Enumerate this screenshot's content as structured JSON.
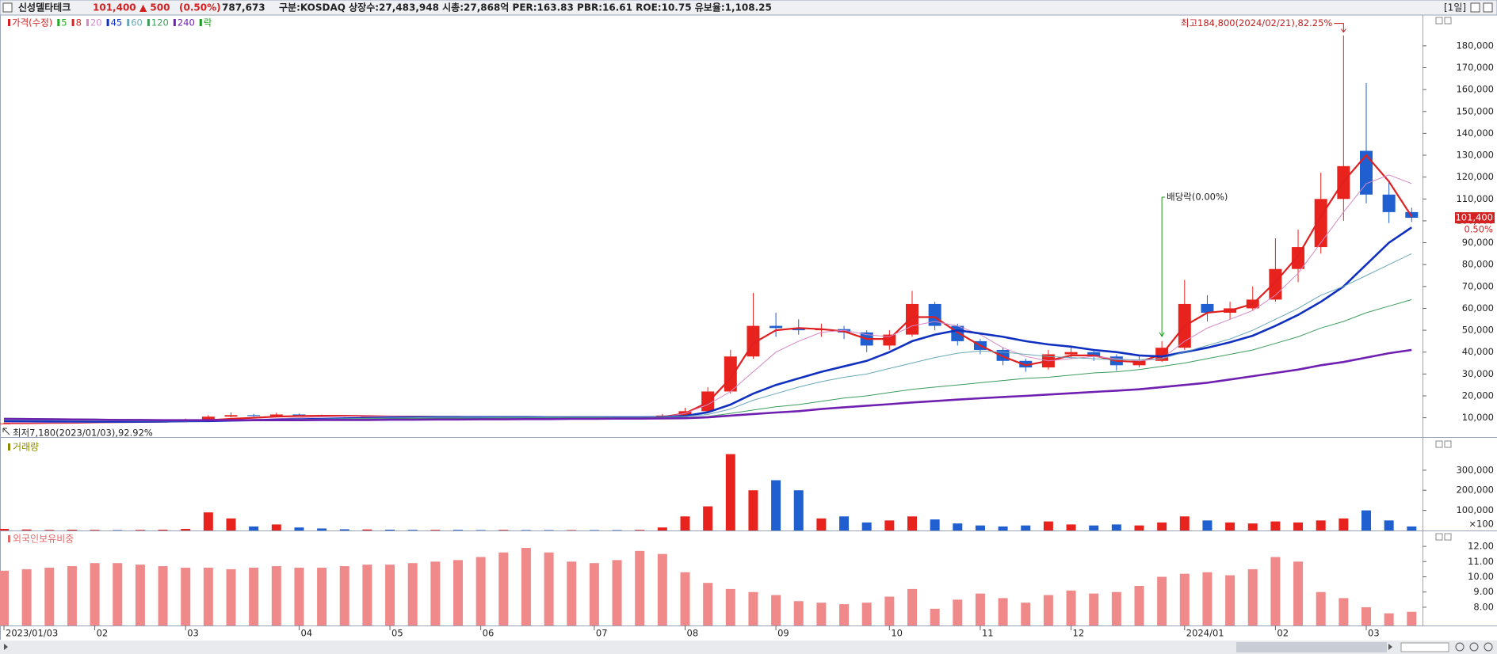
{
  "header": {
    "name": "신성델타테크",
    "price": "101,400",
    "change": "▲ 500",
    "change_pct": "(0.50%)",
    "volume": "787,673",
    "info": "구분:KOSDAQ 상장수:27,483,948 시총:27,868억 PER:163.83 PBR:16.61 ROE:10.75 유보율:1,108.25",
    "period": "[1일]"
  },
  "chart_data": [
    {
      "type": "candlestick",
      "price_label": "가격(수정)",
      "price_color": "#d42020",
      "lock_label": "락",
      "lock_color": "#1a9a1a",
      "up_color": "#e8231d",
      "down_color": "#1f5fd0",
      "categories": [
        "2023/01/03",
        null,
        null,
        null,
        "02",
        null,
        null,
        null,
        "03",
        null,
        null,
        null,
        null,
        "04",
        null,
        null,
        null,
        "05",
        null,
        null,
        null,
        "06",
        null,
        null,
        null,
        null,
        "07",
        null,
        null,
        null,
        "08",
        null,
        null,
        null,
        "09",
        null,
        null,
        null,
        null,
        "10",
        null,
        null,
        null,
        "11",
        null,
        null,
        null,
        "12",
        null,
        null,
        null,
        null,
        "2024/01",
        null,
        null,
        null,
        "02",
        null,
        null,
        null,
        "03",
        null,
        null
      ],
      "open": [
        7300,
        7400,
        7600,
        7800,
        8000,
        8200,
        8100,
        8300,
        8500,
        9000,
        10500,
        11200,
        10800,
        11500,
        11000,
        10800,
        10500,
        10600,
        10400,
        10300,
        10500,
        10400,
        10200,
        10300,
        10100,
        10000,
        10200,
        10100,
        10000,
        10200,
        11000,
        13000,
        22000,
        38000,
        52000,
        51000,
        50000,
        50500,
        49000,
        43000,
        48000,
        62000,
        52000,
        45000,
        41000,
        36000,
        33000,
        39000,
        40000,
        38000,
        34000,
        36000,
        42000,
        62000,
        58000,
        60000,
        64000,
        78000,
        88000,
        110000,
        132000,
        112000,
        104000
      ],
      "high": [
        7800,
        7900,
        8100,
        8300,
        8600,
        8400,
        8500,
        8900,
        9600,
        11200,
        12400,
        11800,
        12300,
        11900,
        11400,
        11100,
        11000,
        10900,
        10700,
        10800,
        10700,
        10600,
        10600,
        10500,
        10300,
        10500,
        10400,
        10300,
        10600,
        11800,
        14500,
        24000,
        41000,
        67000,
        58000,
        55000,
        53000,
        52000,
        50000,
        50000,
        68000,
        63000,
        53000,
        46000,
        42000,
        37000,
        41000,
        43000,
        41000,
        39000,
        38000,
        45000,
        73000,
        66000,
        63000,
        70000,
        92000,
        96000,
        122000,
        184800,
        163000,
        118000,
        106000
      ],
      "low": [
        7180,
        7300,
        7500,
        7700,
        7900,
        7900,
        8000,
        8200,
        8400,
        8900,
        10200,
        10500,
        10600,
        10800,
        10500,
        10300,
        10300,
        10200,
        10100,
        10200,
        10200,
        10000,
        10100,
        9900,
        9800,
        9900,
        9900,
        9800,
        9900,
        10100,
        10800,
        12800,
        21000,
        37000,
        47000,
        48000,
        47000,
        46000,
        40000,
        41000,
        47000,
        50000,
        43000,
        39000,
        34000,
        31000,
        32000,
        37000,
        36000,
        31500,
        33000,
        35500,
        41000,
        54000,
        55000,
        59000,
        63000,
        72000,
        85000,
        100000,
        108000,
        99000,
        99500
      ],
      "close": [
        7400,
        7600,
        7800,
        8000,
        8200,
        8100,
        8300,
        8500,
        9000,
        10500,
        11200,
        10800,
        11500,
        11000,
        10800,
        10500,
        10600,
        10400,
        10300,
        10500,
        10400,
        10200,
        10300,
        10100,
        10000,
        10200,
        10100,
        10000,
        10200,
        11000,
        13000,
        22000,
        38000,
        52000,
        51000,
        50000,
        50500,
        49000,
        43000,
        48000,
        62000,
        52000,
        45000,
        41000,
        36000,
        33000,
        39000,
        40000,
        38000,
        34000,
        36000,
        42000,
        62000,
        58000,
        60000,
        64000,
        78000,
        88000,
        110000,
        125000,
        112000,
        104000,
        101400
      ],
      "series": [
        {
          "name": "5",
          "color": "#22aa22"
        },
        {
          "name": "8",
          "color": "#e02020",
          "width": 2.2,
          "values": [
            7500,
            7500,
            7600,
            7700,
            7900,
            8000,
            8100,
            8200,
            8400,
            8900,
            9500,
            10000,
            10500,
            10800,
            10900,
            10900,
            10800,
            10600,
            10500,
            10400,
            10400,
            10300,
            10300,
            10200,
            10200,
            10100,
            10100,
            10100,
            10100,
            10300,
            12000,
            17000,
            28000,
            44000,
            50000,
            51000,
            50500,
            49500,
            46000,
            46000,
            56000,
            56000,
            49000,
            43000,
            38000,
            34000,
            36000,
            38500,
            38500,
            36000,
            35500,
            39000,
            52000,
            58000,
            59000,
            62000,
            72000,
            84000,
            102000,
            118000,
            130000,
            118000,
            102000
          ]
        },
        {
          "name": "20",
          "color": "#d488c8",
          "width": 1,
          "values": [
            7800,
            7800,
            7800,
            7800,
            7900,
            7900,
            8000,
            8000,
            8200,
            8500,
            8800,
            9200,
            9600,
            10000,
            10400,
            10600,
            10800,
            10700,
            10600,
            10500,
            10400,
            10400,
            10300,
            10300,
            10200,
            10200,
            10200,
            10100,
            10100,
            10200,
            12000,
            16000,
            22000,
            31000,
            40000,
            45000,
            49000,
            50000,
            48000,
            47000,
            52000,
            54000,
            52000,
            48000,
            42000,
            38000,
            36000,
            37000,
            38000,
            37000,
            36000,
            37000,
            45000,
            51000,
            55000,
            59000,
            66000,
            76000,
            90000,
            104000,
            117000,
            121000,
            117000
          ]
        },
        {
          "name": "45",
          "color": "#1030c0",
          "width": 2.6,
          "values": [
            8500,
            8400,
            8300,
            8300,
            8200,
            8200,
            8200,
            8300,
            8400,
            8500,
            8700,
            8900,
            9100,
            9300,
            9500,
            9700,
            9900,
            10100,
            10200,
            10300,
            10300,
            10300,
            10300,
            10300,
            10200,
            10200,
            10200,
            10200,
            10200,
            10300,
            10800,
            12500,
            16000,
            21000,
            25000,
            28000,
            31000,
            33500,
            36000,
            40000,
            45000,
            48000,
            50000,
            48500,
            47000,
            45000,
            43500,
            42500,
            41000,
            40000,
            38500,
            38000,
            40000,
            42000,
            44500,
            47500,
            52000,
            57000,
            63000,
            70000,
            80000,
            90000,
            97000
          ]
        },
        {
          "name": "60",
          "color": "#6aa8b8",
          "width": 1,
          "values": [
            9000,
            8900,
            8800,
            8700,
            8600,
            8600,
            8500,
            8500,
            8500,
            8600,
            8700,
            8800,
            9000,
            9200,
            9400,
            9600,
            9800,
            9900,
            10000,
            10100,
            10200,
            10200,
            10200,
            10200,
            10200,
            10200,
            10200,
            10200,
            10200,
            10300,
            10600,
            11500,
            14000,
            18000,
            21000,
            24000,
            26500,
            28500,
            30000,
            32500,
            35000,
            37500,
            39500,
            40500,
            40000,
            39000,
            38000,
            37500,
            37000,
            36500,
            36500,
            37000,
            40000,
            43000,
            46000,
            50000,
            55000,
            60000,
            66000,
            70000,
            75000,
            80000,
            85000
          ]
        },
        {
          "name": "120",
          "color": "#3c9c5c",
          "width": 1,
          "values": [
            9800,
            9700,
            9600,
            9500,
            9400,
            9300,
            9200,
            9100,
            9000,
            9000,
            9000,
            9000,
            9100,
            9200,
            9300,
            9400,
            9500,
            9600,
            9700,
            9700,
            9800,
            9800,
            9900,
            9900,
            9900,
            10000,
            10000,
            10000,
            10000,
            10100,
            10200,
            10600,
            12000,
            13500,
            15000,
            16000,
            17500,
            19000,
            20000,
            21500,
            23000,
            24000,
            25000,
            26000,
            27000,
            28000,
            28500,
            29500,
            30500,
            31000,
            32000,
            33500,
            35000,
            37000,
            39000,
            41000,
            44000,
            47000,
            51000,
            54000,
            58000,
            61000,
            64000
          ]
        },
        {
          "name": "240",
          "color": "#7020b0",
          "width": 2.6,
          "values": [
            9500,
            9400,
            9300,
            9200,
            9100,
            9000,
            9000,
            8900,
            8900,
            8900,
            8900,
            8900,
            8900,
            8900,
            9000,
            9000,
            9000,
            9100,
            9100,
            9200,
            9200,
            9300,
            9300,
            9400,
            9400,
            9500,
            9500,
            9600,
            9600,
            9700,
            9800,
            10200,
            11000,
            11700,
            12400,
            13000,
            14000,
            14800,
            15500,
            16200,
            17000,
            17600,
            18300,
            18900,
            19500,
            20000,
            20600,
            21200,
            21800,
            22400,
            23000,
            24000,
            25000,
            26000,
            27500,
            29000,
            30500,
            32000,
            34000,
            35500,
            37500,
            39500,
            41000
          ]
        }
      ],
      "ylim": [
        1900,
        193700
      ],
      "yticks": [
        {
          "value": 10000,
          "label": "10,000"
        },
        {
          "value": 20000,
          "label": "20,000"
        },
        {
          "value": 30000,
          "label": "30,000"
        },
        {
          "value": 40000,
          "label": "40,000"
        },
        {
          "value": 50000,
          "label": "50,000"
        },
        {
          "value": 60000,
          "label": "60,000"
        },
        {
          "value": 70000,
          "label": "70,000"
        },
        {
          "value": 80000,
          "label": "80,000"
        },
        {
          "value": 90000,
          "label": "90,000"
        },
        {
          "value": 100000,
          "label": "100,000"
        },
        {
          "value": 110000,
          "label": "110,000"
        },
        {
          "value": 120000,
          "label": "120,000"
        },
        {
          "value": 130000,
          "label": "130,000"
        },
        {
          "value": 140000,
          "label": "140,000"
        },
        {
          "value": 150000,
          "label": "150,000"
        },
        {
          "value": 160000,
          "label": "160,000"
        },
        {
          "value": 170000,
          "label": "170,000"
        },
        {
          "value": 180000,
          "label": "180,000"
        }
      ],
      "high_note": "최고184,800(2024/02/21),82.25%",
      "low_note": "최저7,180(2023/01/03),92.92%",
      "dividend_note": "배당락(0.00%)",
      "last_price": {
        "value": 101400,
        "label": "101,400"
      },
      "last_change": "0.50%"
    },
    {
      "type": "bar",
      "title": "거래량",
      "title_color": "#8a8a00",
      "unit": "×100",
      "values": [
        8000,
        5000,
        3000,
        4000,
        3000,
        2000,
        3000,
        4000,
        8000,
        90000,
        60000,
        20000,
        30000,
        15000,
        10000,
        6000,
        5000,
        4000,
        3000,
        3000,
        3000,
        2000,
        3000,
        2000,
        2000,
        2000,
        2000,
        2000,
        3000,
        15000,
        70000,
        120000,
        380000,
        200000,
        250000,
        200000,
        60000,
        70000,
        40000,
        50000,
        70000,
        55000,
        35000,
        25000,
        20000,
        25000,
        45000,
        30000,
        25000,
        30000,
        25000,
        40000,
        70000,
        50000,
        40000,
        35000,
        45000,
        40000,
        50000,
        60000,
        100000,
        50000,
        20000
      ],
      "ylim": [
        0,
        453000
      ],
      "yticks": [
        {
          "value": 100000,
          "label": "100,000"
        },
        {
          "value": 200000,
          "label": "200,000"
        },
        {
          "value": 300000,
          "label": "300,000"
        }
      ]
    },
    {
      "type": "bar",
      "title": "외국인보유비중",
      "title_color": "#e06a6a",
      "color": "#f08a8a",
      "values": [
        10.4,
        10.5,
        10.6,
        10.7,
        10.9,
        10.9,
        10.8,
        10.7,
        10.6,
        10.6,
        10.5,
        10.6,
        10.7,
        10.6,
        10.6,
        10.7,
        10.8,
        10.8,
        10.9,
        11.0,
        11.1,
        11.3,
        11.6,
        11.9,
        11.6,
        11.0,
        10.9,
        11.1,
        11.7,
        11.5,
        10.3,
        9.6,
        9.2,
        9.0,
        8.8,
        8.4,
        8.3,
        8.2,
        8.3,
        8.7,
        9.2,
        7.9,
        8.5,
        8.9,
        8.6,
        8.3,
        8.8,
        9.1,
        8.9,
        9.0,
        9.4,
        10.0,
        10.2,
        10.3,
        10.1,
        10.5,
        11.3,
        11.0,
        9.0,
        8.6,
        8.0,
        7.6,
        7.7
      ],
      "ylim": [
        6.8,
        12.94
      ],
      "yticks": [
        {
          "value": 8,
          "label": "8.00"
        },
        {
          "value": 9,
          "label": "9.00"
        },
        {
          "value": 10,
          "label": "10.00"
        },
        {
          "value": 11,
          "label": "11.00"
        },
        {
          "value": 12,
          "label": "12.00"
        }
      ]
    }
  ]
}
